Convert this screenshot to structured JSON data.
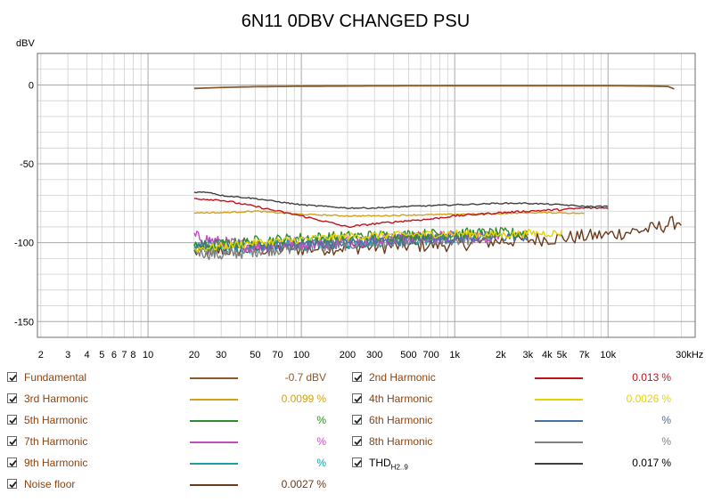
{
  "chart_data": {
    "type": "line",
    "title": "6N11 0DBV CHANGED PSU",
    "ylabel": "dBV",
    "xunit": "kHz",
    "xscale": "log",
    "xlim": [
      1.9,
      37000
    ],
    "ylim": [
      -160,
      20
    ],
    "grid": true,
    "x_ticks": [
      {
        "v": 2,
        "label": "2"
      },
      {
        "v": 3,
        "label": "3"
      },
      {
        "v": 4,
        "label": "4"
      },
      {
        "v": 5,
        "label": "5"
      },
      {
        "v": 6,
        "label": "6"
      },
      {
        "v": 7,
        "label": "7"
      },
      {
        "v": 8,
        "label": "8"
      },
      {
        "v": 10,
        "label": "10"
      },
      {
        "v": 20,
        "label": "20"
      },
      {
        "v": 30,
        "label": "30"
      },
      {
        "v": 50,
        "label": "50"
      },
      {
        "v": 70,
        "label": "70"
      },
      {
        "v": 100,
        "label": "100"
      },
      {
        "v": 200,
        "label": "200"
      },
      {
        "v": 300,
        "label": "300"
      },
      {
        "v": 500,
        "label": "500"
      },
      {
        "v": 700,
        "label": "700"
      },
      {
        "v": 1000,
        "label": "1k"
      },
      {
        "v": 2000,
        "label": "2k"
      },
      {
        "v": 3000,
        "label": "3k"
      },
      {
        "v": 4000,
        "label": "4k"
      },
      {
        "v": 5000,
        "label": "5k"
      },
      {
        "v": 7000,
        "label": "7k"
      },
      {
        "v": 10000,
        "label": "10k"
      },
      {
        "v": 34000,
        "label": "30kHz"
      }
    ],
    "y_ticks": [
      {
        "v": 0,
        "label": "0"
      },
      {
        "v": -50,
        "label": "-50"
      },
      {
        "v": -100,
        "label": "-100"
      },
      {
        "v": -150,
        "label": "-150"
      }
    ],
    "series": [
      {
        "name": "Fundamental",
        "color": "#8b5a2b",
        "jitter": 0,
        "x": [
          20,
          30,
          50,
          100,
          300,
          1000,
          3000,
          10000,
          20000,
          25000,
          27000
        ],
        "y": [
          -2.2,
          -1.6,
          -1.1,
          -0.8,
          -0.6,
          -0.5,
          -0.5,
          -0.5,
          -0.7,
          -1.0,
          -2.5
        ]
      },
      {
        "name": "2nd Harmonic",
        "color": "#c0141e",
        "jitter": 0.6,
        "x": [
          20,
          30,
          50,
          70,
          100,
          150,
          200,
          300,
          500,
          700,
          1000,
          2000,
          3000,
          5000,
          7000,
          10000
        ],
        "y": [
          -72,
          -73,
          -77,
          -80,
          -83,
          -87,
          -90,
          -88,
          -86,
          -85,
          -83,
          -81,
          -80,
          -79,
          -78,
          -78
        ]
      },
      {
        "name": "3rd Harmonic",
        "color": "#d4a017",
        "jitter": 0.4,
        "x": [
          20,
          30,
          50,
          70,
          100,
          200,
          300,
          500,
          1000,
          2000,
          3000,
          5000,
          7000
        ],
        "y": [
          -81,
          -81,
          -80,
          -81,
          -82,
          -83,
          -83,
          -82.5,
          -82,
          -81.5,
          -81,
          -81,
          -81.5
        ]
      },
      {
        "name": "4th Harmonic",
        "color": "#e6d200",
        "jitter": 2.5,
        "x": [
          20,
          50,
          100,
          200,
          500,
          1000,
          2000,
          3000,
          5000
        ],
        "y": [
          -104,
          -100,
          -98,
          -96,
          -95,
          -94,
          -95,
          -94,
          -94
        ]
      },
      {
        "name": "5th Harmonic",
        "color": "#2e8b2e",
        "jitter": 3.5,
        "x": [
          20,
          50,
          100,
          200,
          500,
          1000,
          2000,
          3000
        ],
        "y": [
          -103,
          -99,
          -97,
          -96,
          -95,
          -94,
          -94,
          -94
        ]
      },
      {
        "name": "6th Harmonic",
        "color": "#4a6fa5",
        "jitter": 3.5,
        "x": [
          20,
          50,
          100,
          200,
          500,
          1000,
          2000,
          3000
        ],
        "y": [
          -101,
          -102,
          -101,
          -100,
          -98,
          -97,
          -96,
          -96
        ]
      },
      {
        "name": "7th Harmonic",
        "color": "#c050c0",
        "jitter": 4,
        "x": [
          20,
          30,
          50,
          100,
          200,
          500,
          1000,
          2000
        ],
        "y": [
          -96,
          -100,
          -102,
          -100,
          -99,
          -97,
          -96,
          -96
        ]
      },
      {
        "name": "8th Harmonic",
        "color": "#808080",
        "jitter": 4,
        "x": [
          20,
          30,
          50,
          100,
          200,
          500,
          1000,
          1800
        ],
        "y": [
          -105,
          -108,
          -105,
          -103,
          -101,
          -99,
          -98,
          -97
        ]
      },
      {
        "name": "9th Harmonic",
        "color": "#1aa0a0",
        "jitter": 4,
        "x": [
          20,
          30,
          50,
          100,
          200,
          500,
          1000
        ],
        "y": [
          -104,
          -104,
          -103,
          -101,
          -100,
          -98,
          -97
        ]
      },
      {
        "name": "THD",
        "color": "#404040",
        "jitter": 0.4,
        "x": [
          20,
          25,
          30,
          50,
          70,
          100,
          200,
          300,
          500,
          1000,
          2000,
          3000,
          5000,
          7000,
          10000
        ],
        "y": [
          -68,
          -68,
          -70,
          -72,
          -74,
          -76,
          -78,
          -78,
          -77,
          -76,
          -75,
          -75,
          -76,
          -77,
          -77
        ]
      },
      {
        "name": "Noise floor",
        "color": "#6b3a1a",
        "jitter": 4.5,
        "x": [
          20,
          30,
          50,
          100,
          200,
          500,
          1000,
          2000,
          5000,
          10000,
          20000,
          30000
        ],
        "y": [
          -106,
          -105,
          -104,
          -104,
          -103,
          -102,
          -101,
          -99,
          -97,
          -95,
          -91,
          -86
        ]
      }
    ]
  },
  "legend": [
    {
      "name": "Fundamental",
      "color": "#8b5a2b",
      "value": "-0.7",
      "unit": "dBV"
    },
    {
      "name": "2nd Harmonic",
      "color": "#c0141e",
      "value": "0.013",
      "unit": "%"
    },
    {
      "name": "3rd Harmonic",
      "color": "#d4a017",
      "value": "0.0099",
      "unit": "%"
    },
    {
      "name": "4th Harmonic",
      "color": "#e6d200",
      "value": "0.0026",
      "unit": "%"
    },
    {
      "name": "5th Harmonic",
      "color": "#2e8b2e",
      "value": "",
      "unit": "%"
    },
    {
      "name": "6th Harmonic",
      "color": "#4a6fa5",
      "value": "",
      "unit": "%"
    },
    {
      "name": "7th Harmonic",
      "color": "#c050c0",
      "value": "",
      "unit": "%"
    },
    {
      "name": "8th Harmonic",
      "color": "#808080",
      "value": "",
      "unit": "%"
    },
    {
      "name": "9th Harmonic",
      "color": "#1aa0a0",
      "value": "",
      "unit": "%"
    },
    {
      "name": "THD",
      "sub": "H2..9",
      "color": "#404040",
      "value": "0.017",
      "unit": "%"
    },
    {
      "name": "Noise floor",
      "color": "#6b3a1a",
      "value": "0.0027",
      "unit": "%"
    }
  ],
  "colors": {
    "text_label": "#8b4513",
    "grid_major": "#a8a8a8",
    "grid_minor": "#d0d0d0",
    "plot_border": "#6d6d6d"
  }
}
